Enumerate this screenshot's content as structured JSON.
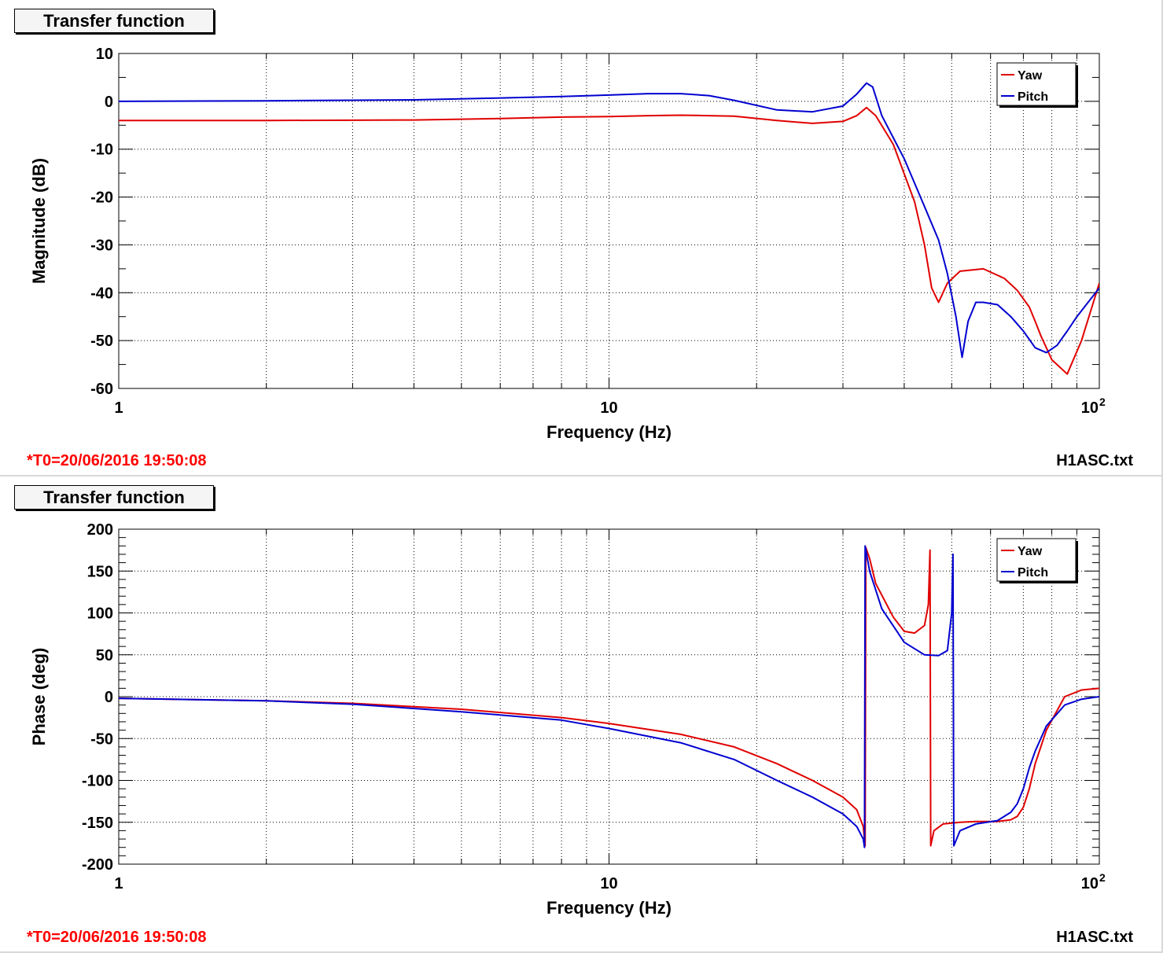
{
  "colors": {
    "yaw": "#e00000",
    "pitch": "#0000d0",
    "footer": "#ff0000"
  },
  "top_panel": {
    "title": "Transfer function",
    "footer_time": "*T0=20/06/2016 19:50:08",
    "footer_file": "H1ASC.txt",
    "x_tick_labels": [
      "1",
      "10",
      "10",
      "2"
    ],
    "y_tick_labels": [
      "10",
      "0",
      "-10",
      "-20",
      "-30",
      "-40",
      "-50",
      "-60"
    ]
  },
  "bottom_panel": {
    "title": "Transfer function",
    "footer_time": "*T0=20/06/2016 19:50:08",
    "footer_file": "H1ASC.txt",
    "x_tick_labels": [
      "1",
      "10",
      "10",
      "2"
    ],
    "y_tick_labels": [
      "200",
      "150",
      "100",
      "50",
      "0",
      "-50",
      "-100",
      "-150",
      "-200"
    ]
  },
  "chart_data": [
    {
      "type": "line",
      "xlabel": "Frequency (Hz)",
      "ylabel": "Magnitude (dB)",
      "xscale": "log",
      "xlim": [
        1,
        100
      ],
      "ylim": [
        -60,
        10
      ],
      "grid": true,
      "legend_position": "top-right",
      "series": [
        {
          "name": "Yaw",
          "color": "#e00000",
          "x": [
            1,
            2,
            4,
            6,
            8,
            10,
            12,
            14,
            18,
            22,
            26,
            30,
            32,
            33.5,
            35,
            38,
            42,
            44,
            45.5,
            47,
            49,
            52,
            58,
            64,
            68,
            72,
            74,
            76,
            80,
            86,
            92,
            100
          ],
          "y": [
            -4,
            -4,
            -3.9,
            -3.6,
            -3.3,
            -3.2,
            -3,
            -2.9,
            -3.1,
            -4,
            -4.6,
            -4.2,
            -3,
            -1.3,
            -3,
            -9,
            -21,
            -30,
            -39,
            -42,
            -38,
            -35.5,
            -35,
            -37,
            -39.5,
            -43,
            -46,
            -49,
            -54,
            -57,
            -50,
            -38
          ]
        },
        {
          "name": "Pitch",
          "color": "#0000d0",
          "x": [
            1,
            2,
            4,
            6,
            8,
            10,
            12,
            14,
            16,
            18,
            22,
            26,
            30,
            32,
            33.5,
            34.5,
            36,
            40,
            44,
            47,
            49,
            51,
            52.5,
            54,
            56,
            58,
            62,
            66,
            70,
            74,
            78,
            82,
            86,
            90,
            100
          ],
          "y": [
            0,
            0.1,
            0.3,
            0.7,
            1,
            1.3,
            1.6,
            1.6,
            1.2,
            0.2,
            -1.8,
            -2.2,
            -1,
            1.5,
            3.8,
            3,
            -3,
            -12,
            -22,
            -29,
            -36,
            -45,
            -53.5,
            -46,
            -42,
            -42,
            -42.5,
            -45,
            -48,
            -51.5,
            -52.5,
            -51,
            -48,
            -45,
            -39
          ]
        }
      ]
    },
    {
      "type": "line",
      "xlabel": "Frequency (Hz)",
      "ylabel": "Phase (deg)",
      "xscale": "log",
      "xlim": [
        1,
        100
      ],
      "ylim": [
        -200,
        200
      ],
      "grid": true,
      "legend_position": "top-right",
      "series": [
        {
          "name": "Yaw",
          "color": "#e00000",
          "x": [
            1,
            2,
            3,
            5,
            8,
            10,
            14,
            18,
            22,
            26,
            30,
            32,
            33,
            33.3,
            33.4,
            34,
            35,
            38,
            40,
            42,
            44,
            44.8,
            45.15,
            45.3,
            46,
            48,
            52,
            56,
            62,
            66,
            68,
            70,
            72,
            74,
            78,
            85,
            92,
            100
          ],
          "y": [
            -2,
            -5,
            -8,
            -15,
            -25,
            -32,
            -45,
            -60,
            -80,
            -100,
            -120,
            -135,
            -155,
            -178,
            178,
            165,
            135,
            95,
            78,
            76,
            85,
            110,
            175,
            -178,
            -160,
            -152,
            -150,
            -149,
            -149,
            -147,
            -143,
            -132,
            -110,
            -80,
            -40,
            0,
            8,
            10
          ]
        },
        {
          "name": "Pitch",
          "color": "#0000d0",
          "x": [
            1,
            2,
            3,
            5,
            8,
            10,
            14,
            18,
            22,
            26,
            30,
            32,
            33,
            33.2,
            33.3,
            34,
            36,
            40,
            44,
            47,
            49,
            50,
            50.3,
            50.5,
            52,
            56,
            62,
            66,
            68,
            70,
            72,
            74,
            78,
            85,
            92,
            100
          ],
          "y": [
            -2,
            -5,
            -9,
            -18,
            -28,
            -38,
            -55,
            -75,
            -100,
            -120,
            -140,
            -155,
            -170,
            -180,
            180,
            150,
            105,
            65,
            50,
            49,
            55,
            100,
            170,
            -178,
            -160,
            -152,
            -148,
            -138,
            -128,
            -110,
            -85,
            -65,
            -35,
            -10,
            -3,
            0
          ]
        }
      ]
    }
  ]
}
